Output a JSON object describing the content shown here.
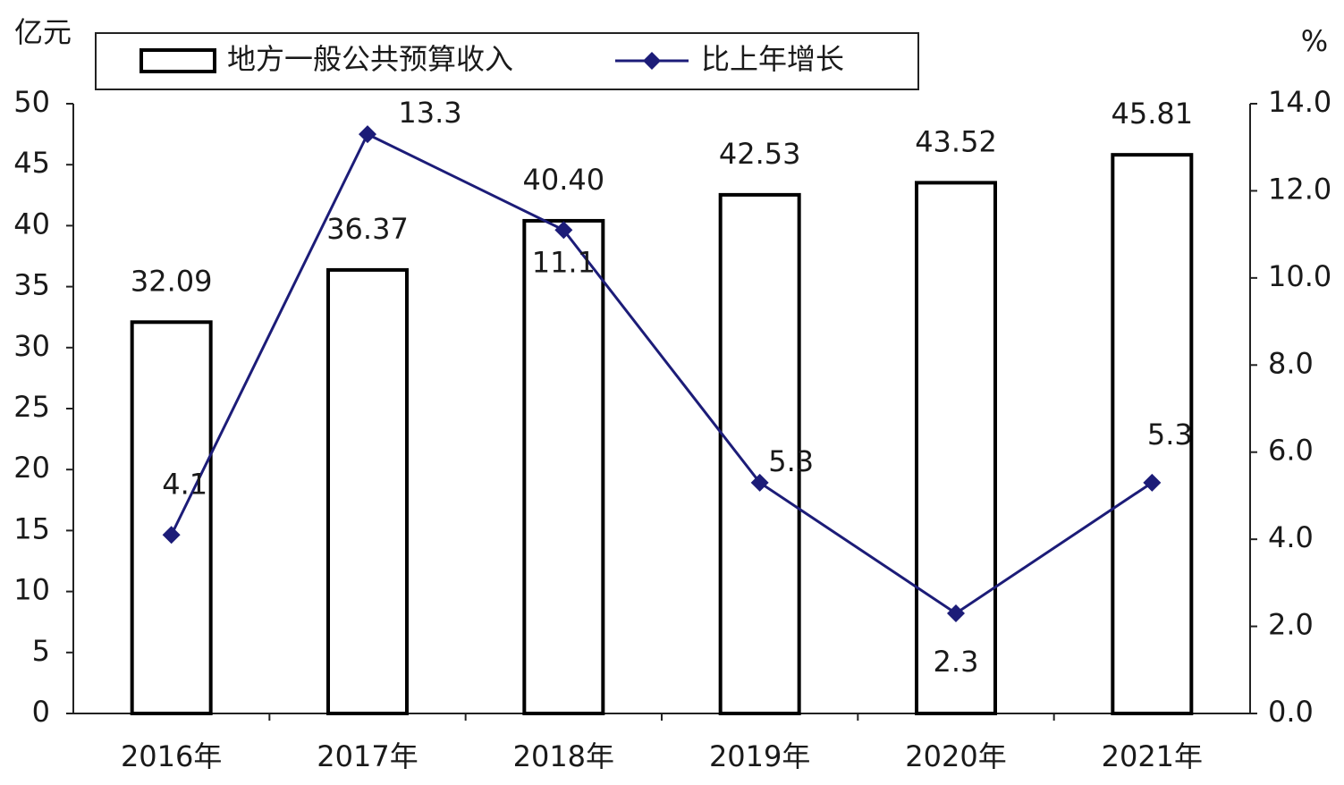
{
  "chart_data": {
    "type": "bar",
    "y_unit": "亿元",
    "y2_unit": "%",
    "categories": [
      "2016年",
      "2017年",
      "2018年",
      "2019年",
      "2020年",
      "2021年"
    ],
    "series": [
      {
        "name": "地方一般公共预算收入",
        "type": "bar",
        "color": "#000000",
        "values": [
          32.09,
          36.37,
          40.4,
          42.53,
          43.52,
          45.81
        ],
        "value_labels": [
          "32.09",
          "36.37",
          "40.40",
          "42.53",
          "43.52",
          "45.81"
        ]
      },
      {
        "name": "比上年增长",
        "type": "line",
        "axis": "y2",
        "color": "#1c1c78",
        "values": [
          4.1,
          13.3,
          11.1,
          5.3,
          2.3,
          5.3
        ]
      }
    ],
    "ylim": [
      0,
      50
    ],
    "yticks": [
      0,
      5,
      10,
      15,
      20,
      25,
      30,
      35,
      40,
      45,
      50
    ],
    "y2lim": [
      0,
      14
    ],
    "y2ticks": [
      {
        "value": 0,
        "label": "0.0"
      },
      {
        "value": 2,
        "label": "2.0"
      },
      {
        "value": 4,
        "label": "4.0"
      },
      {
        "value": 6,
        "label": "6.0"
      },
      {
        "value": 8,
        "label": "8.0"
      },
      {
        "value": 10,
        "label": "10.0"
      },
      {
        "value": 12,
        "label": "12.0"
      },
      {
        "value": 14,
        "label": "14.0"
      }
    ]
  }
}
